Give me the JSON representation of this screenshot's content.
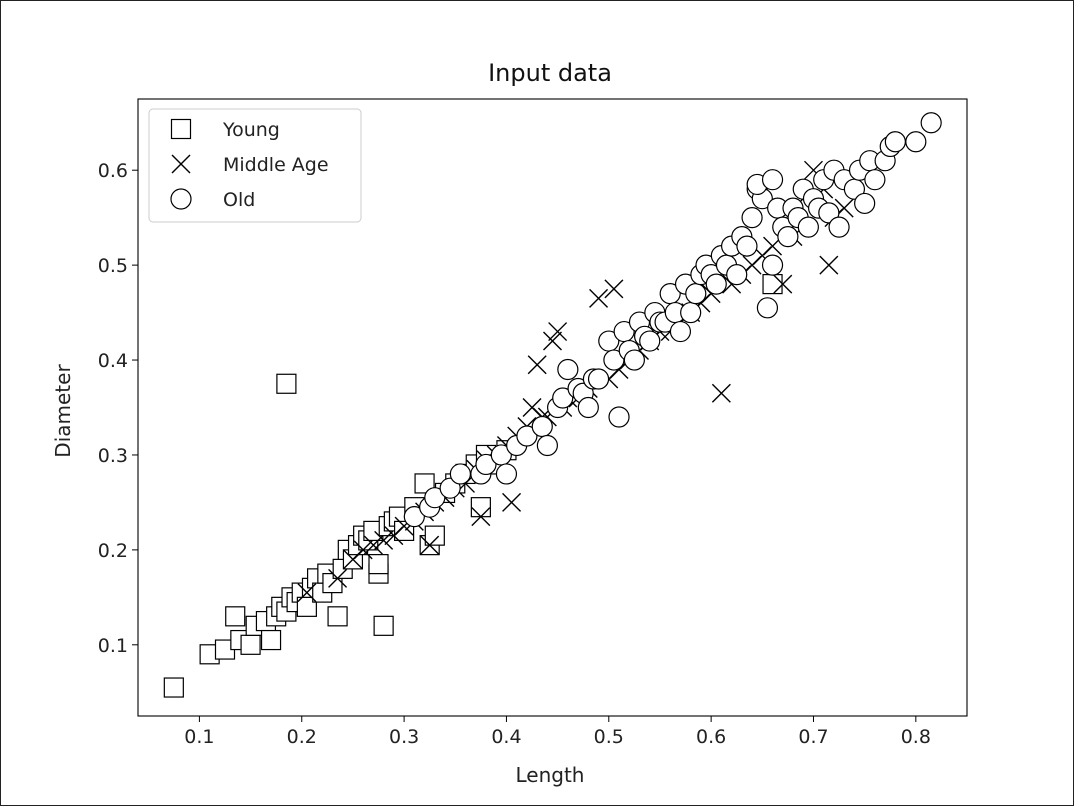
{
  "chart_data": {
    "type": "scatter",
    "title": "Input data",
    "xlabel": "Length",
    "ylabel": "Diameter",
    "xlim": [
      0.04,
      0.85
    ],
    "ylim": [
      0.025,
      0.675
    ],
    "x_ticks": [
      "0.1",
      "0.2",
      "0.3",
      "0.4",
      "0.5",
      "0.6",
      "0.7",
      "0.8"
    ],
    "x_tick_values": [
      0.1,
      0.2,
      0.3,
      0.4,
      0.5,
      0.6,
      0.7,
      0.8
    ],
    "y_ticks": [
      "0.1",
      "0.2",
      "0.3",
      "0.4",
      "0.5",
      "0.6"
    ],
    "y_tick_values": [
      0.1,
      0.2,
      0.3,
      0.4,
      0.5,
      0.6
    ],
    "grid": false,
    "legend_position": "top-left",
    "series": [
      {
        "name": "Young",
        "marker": "square",
        "points": [
          [
            0.075,
            0.055
          ],
          [
            0.11,
            0.09
          ],
          [
            0.125,
            0.095
          ],
          [
            0.135,
            0.13
          ],
          [
            0.14,
            0.105
          ],
          [
            0.15,
            0.1
          ],
          [
            0.155,
            0.12
          ],
          [
            0.165,
            0.125
          ],
          [
            0.17,
            0.105
          ],
          [
            0.175,
            0.13
          ],
          [
            0.18,
            0.14
          ],
          [
            0.185,
            0.375
          ],
          [
            0.185,
            0.135
          ],
          [
            0.19,
            0.15
          ],
          [
            0.195,
            0.145
          ],
          [
            0.2,
            0.155
          ],
          [
            0.205,
            0.14
          ],
          [
            0.21,
            0.16
          ],
          [
            0.215,
            0.17
          ],
          [
            0.22,
            0.155
          ],
          [
            0.225,
            0.175
          ],
          [
            0.23,
            0.165
          ],
          [
            0.235,
            0.13
          ],
          [
            0.24,
            0.18
          ],
          [
            0.245,
            0.2
          ],
          [
            0.25,
            0.19
          ],
          [
            0.255,
            0.205
          ],
          [
            0.26,
            0.215
          ],
          [
            0.265,
            0.21
          ],
          [
            0.27,
            0.22
          ],
          [
            0.275,
            0.175
          ],
          [
            0.275,
            0.185
          ],
          [
            0.28,
            0.12
          ],
          [
            0.285,
            0.225
          ],
          [
            0.29,
            0.23
          ],
          [
            0.295,
            0.235
          ],
          [
            0.3,
            0.22
          ],
          [
            0.31,
            0.245
          ],
          [
            0.32,
            0.27
          ],
          [
            0.325,
            0.205
          ],
          [
            0.33,
            0.215
          ],
          [
            0.34,
            0.26
          ],
          [
            0.35,
            0.27
          ],
          [
            0.36,
            0.28
          ],
          [
            0.37,
            0.29
          ],
          [
            0.375,
            0.245
          ],
          [
            0.38,
            0.3
          ],
          [
            0.39,
            0.29
          ],
          [
            0.4,
            0.305
          ],
          [
            0.66,
            0.48
          ]
        ]
      },
      {
        "name": "Middle Age",
        "marker": "x",
        "points": [
          [
            0.205,
            0.155
          ],
          [
            0.235,
            0.17
          ],
          [
            0.25,
            0.19
          ],
          [
            0.26,
            0.2
          ],
          [
            0.27,
            0.205
          ],
          [
            0.28,
            0.21
          ],
          [
            0.29,
            0.215
          ],
          [
            0.3,
            0.225
          ],
          [
            0.31,
            0.23
          ],
          [
            0.32,
            0.24
          ],
          [
            0.325,
            0.205
          ],
          [
            0.33,
            0.25
          ],
          [
            0.34,
            0.255
          ],
          [
            0.35,
            0.265
          ],
          [
            0.36,
            0.27
          ],
          [
            0.37,
            0.285
          ],
          [
            0.375,
            0.235
          ],
          [
            0.38,
            0.295
          ],
          [
            0.39,
            0.3
          ],
          [
            0.4,
            0.31
          ],
          [
            0.405,
            0.25
          ],
          [
            0.41,
            0.32
          ],
          [
            0.42,
            0.33
          ],
          [
            0.425,
            0.35
          ],
          [
            0.43,
            0.395
          ],
          [
            0.435,
            0.34
          ],
          [
            0.44,
            0.34
          ],
          [
            0.445,
            0.42
          ],
          [
            0.45,
            0.43
          ],
          [
            0.455,
            0.35
          ],
          [
            0.46,
            0.36
          ],
          [
            0.47,
            0.36
          ],
          [
            0.48,
            0.37
          ],
          [
            0.49,
            0.465
          ],
          [
            0.5,
            0.38
          ],
          [
            0.505,
            0.475
          ],
          [
            0.51,
            0.39
          ],
          [
            0.52,
            0.4
          ],
          [
            0.53,
            0.41
          ],
          [
            0.54,
            0.42
          ],
          [
            0.55,
            0.43
          ],
          [
            0.56,
            0.43
          ],
          [
            0.57,
            0.44
          ],
          [
            0.58,
            0.45
          ],
          [
            0.59,
            0.46
          ],
          [
            0.6,
            0.47
          ],
          [
            0.61,
            0.365
          ],
          [
            0.62,
            0.48
          ],
          [
            0.63,
            0.49
          ],
          [
            0.64,
            0.5
          ],
          [
            0.65,
            0.51
          ],
          [
            0.66,
            0.52
          ],
          [
            0.67,
            0.48
          ],
          [
            0.68,
            0.53
          ],
          [
            0.69,
            0.57
          ],
          [
            0.7,
            0.6
          ],
          [
            0.71,
            0.58
          ],
          [
            0.715,
            0.5
          ],
          [
            0.72,
            0.55
          ],
          [
            0.73,
            0.56
          ]
        ]
      },
      {
        "name": "Old",
        "marker": "circle",
        "points": [
          [
            0.31,
            0.235
          ],
          [
            0.325,
            0.245
          ],
          [
            0.33,
            0.255
          ],
          [
            0.345,
            0.265
          ],
          [
            0.355,
            0.28
          ],
          [
            0.375,
            0.28
          ],
          [
            0.38,
            0.29
          ],
          [
            0.395,
            0.3
          ],
          [
            0.4,
            0.28
          ],
          [
            0.41,
            0.31
          ],
          [
            0.42,
            0.32
          ],
          [
            0.435,
            0.33
          ],
          [
            0.44,
            0.31
          ],
          [
            0.45,
            0.35
          ],
          [
            0.455,
            0.36
          ],
          [
            0.46,
            0.39
          ],
          [
            0.47,
            0.37
          ],
          [
            0.475,
            0.365
          ],
          [
            0.48,
            0.35
          ],
          [
            0.485,
            0.38
          ],
          [
            0.49,
            0.38
          ],
          [
            0.5,
            0.42
          ],
          [
            0.505,
            0.4
          ],
          [
            0.51,
            0.34
          ],
          [
            0.515,
            0.43
          ],
          [
            0.52,
            0.41
          ],
          [
            0.525,
            0.4
          ],
          [
            0.53,
            0.44
          ],
          [
            0.535,
            0.425
          ],
          [
            0.54,
            0.42
          ],
          [
            0.545,
            0.45
          ],
          [
            0.55,
            0.44
          ],
          [
            0.555,
            0.44
          ],
          [
            0.56,
            0.47
          ],
          [
            0.565,
            0.45
          ],
          [
            0.57,
            0.43
          ],
          [
            0.575,
            0.48
          ],
          [
            0.58,
            0.45
          ],
          [
            0.585,
            0.47
          ],
          [
            0.59,
            0.49
          ],
          [
            0.595,
            0.5
          ],
          [
            0.6,
            0.49
          ],
          [
            0.605,
            0.48
          ],
          [
            0.61,
            0.51
          ],
          [
            0.615,
            0.5
          ],
          [
            0.62,
            0.52
          ],
          [
            0.625,
            0.49
          ],
          [
            0.63,
            0.53
          ],
          [
            0.635,
            0.52
          ],
          [
            0.64,
            0.55
          ],
          [
            0.645,
            0.58
          ],
          [
            0.65,
            0.57
          ],
          [
            0.655,
            0.455
          ],
          [
            0.66,
            0.5
          ],
          [
            0.665,
            0.56
          ],
          [
            0.67,
            0.54
          ],
          [
            0.675,
            0.53
          ],
          [
            0.68,
            0.56
          ],
          [
            0.685,
            0.55
          ],
          [
            0.69,
            0.58
          ],
          [
            0.695,
            0.54
          ],
          [
            0.7,
            0.57
          ],
          [
            0.705,
            0.56
          ],
          [
            0.71,
            0.59
          ],
          [
            0.715,
            0.555
          ],
          [
            0.72,
            0.6
          ],
          [
            0.725,
            0.54
          ],
          [
            0.73,
            0.59
          ],
          [
            0.74,
            0.58
          ],
          [
            0.745,
            0.6
          ],
          [
            0.75,
            0.565
          ],
          [
            0.755,
            0.61
          ],
          [
            0.76,
            0.59
          ],
          [
            0.77,
            0.61
          ],
          [
            0.775,
            0.625
          ],
          [
            0.78,
            0.63
          ],
          [
            0.8,
            0.63
          ],
          [
            0.815,
            0.65
          ],
          [
            0.645,
            0.585
          ],
          [
            0.66,
            0.59
          ]
        ]
      }
    ]
  }
}
